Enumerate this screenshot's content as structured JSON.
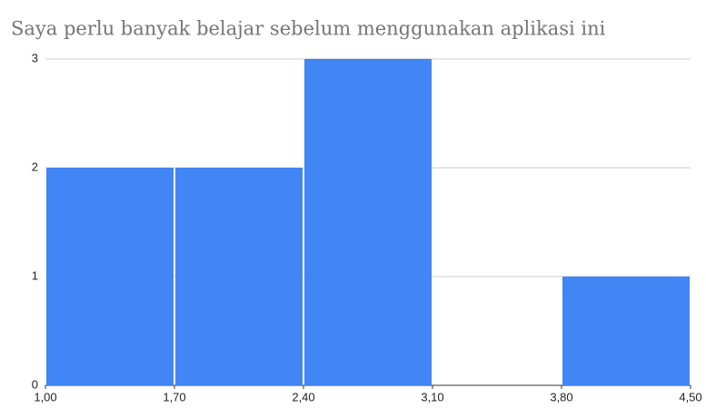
{
  "chart_data": {
    "type": "histogram",
    "title": "Saya perlu banyak belajar sebelum menggunakan aplikasi ini",
    "bins": [
      1.0,
      1.7,
      2.4,
      3.1,
      3.8,
      4.5
    ],
    "counts": [
      2,
      2,
      3,
      0,
      1
    ],
    "color": "#4285f4",
    "xlim": [
      1.0,
      4.5
    ],
    "xticks": [
      {
        "value": 1.0,
        "label": "1,00"
      },
      {
        "value": 1.7,
        "label": "1,70"
      },
      {
        "value": 2.4,
        "label": "2,40"
      },
      {
        "value": 3.1,
        "label": "3,10"
      },
      {
        "value": 3.8,
        "label": "3,80"
      },
      {
        "value": 4.5,
        "label": "4,50"
      }
    ],
    "ylim": [
      0,
      3
    ],
    "yticks": [
      0,
      1,
      2,
      3
    ],
    "grid": true
  }
}
